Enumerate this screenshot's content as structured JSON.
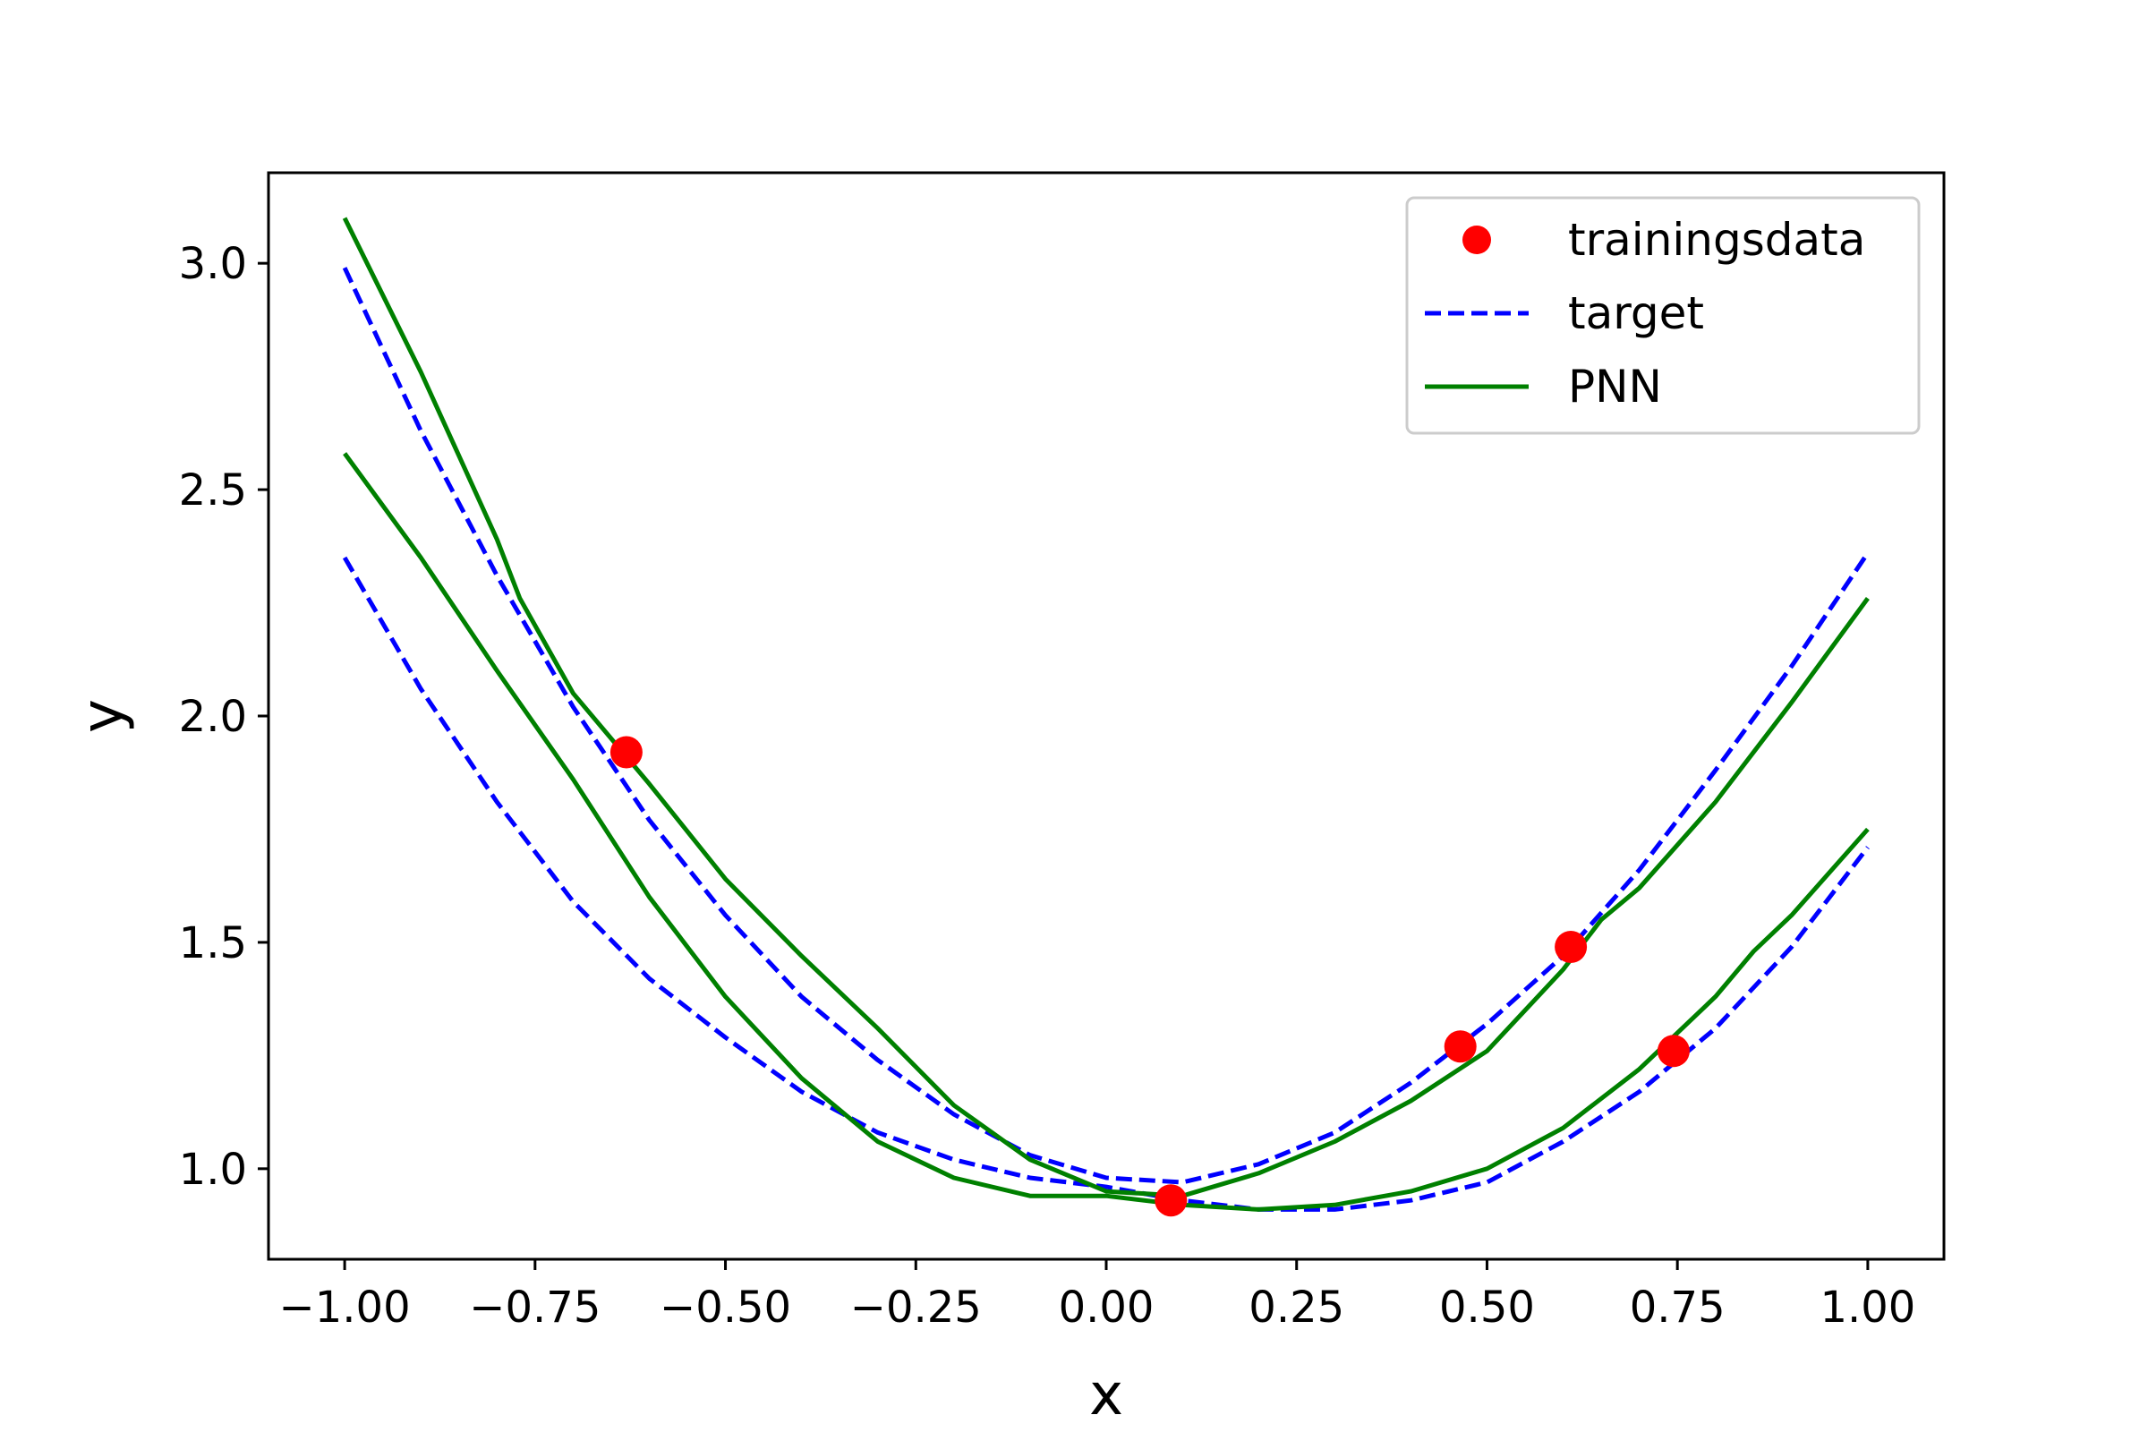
{
  "chart_data": {
    "type": "line",
    "xlabel": "x",
    "ylabel": "y",
    "xlim": [
      -1.1,
      1.1
    ],
    "ylim": [
      0.8,
      3.2
    ],
    "grid": false,
    "legend": {
      "placement": "top-right",
      "entries": [
        {
          "label": "trainingsdata",
          "marker": "circle",
          "color": "#ff0000"
        },
        {
          "label": "target",
          "style": "dashed",
          "color": "#0000ff"
        },
        {
          "label": "PNN",
          "style": "solid",
          "color": "#008000"
        }
      ]
    },
    "xticks": [
      -1.0,
      -0.75,
      -0.5,
      -0.25,
      0.0,
      0.25,
      0.5,
      0.75,
      1.0
    ],
    "xtick_labels": [
      "−1.00",
      "−0.75",
      "−0.50",
      "−0.25",
      "0.00",
      "0.25",
      "0.50",
      "0.75",
      "1.00"
    ],
    "yticks": [
      1.0,
      1.5,
      2.0,
      2.5,
      3.0
    ],
    "ytick_labels": [
      "1.0",
      "1.5",
      "2.0",
      "2.5",
      "3.0"
    ],
    "series": [
      {
        "legend_label": "target",
        "style": "dashed",
        "color": "#0000ff",
        "x": [
          -1.0,
          -0.9,
          -0.8,
          -0.7,
          -0.6,
          -0.5,
          -0.4,
          -0.3,
          -0.2,
          -0.1,
          0.0,
          0.1,
          0.2,
          0.3,
          0.4,
          0.5,
          0.6,
          0.7,
          0.8,
          0.9,
          1.0
        ],
        "y": [
          2.99,
          2.63,
          2.31,
          2.02,
          1.77,
          1.56,
          1.38,
          1.24,
          1.12,
          1.03,
          0.98,
          0.97,
          1.01,
          1.08,
          1.19,
          1.32,
          1.47,
          1.66,
          1.88,
          2.11,
          2.36
        ]
      },
      {
        "legend_label": "target",
        "style": "dashed",
        "color": "#0000ff",
        "x": [
          -1.0,
          -0.9,
          -0.8,
          -0.7,
          -0.6,
          -0.5,
          -0.4,
          -0.3,
          -0.2,
          -0.1,
          0.0,
          0.1,
          0.2,
          0.3,
          0.4,
          0.5,
          0.6,
          0.7,
          0.8,
          0.9,
          1.0
        ],
        "y": [
          2.35,
          2.06,
          1.81,
          1.59,
          1.42,
          1.29,
          1.17,
          1.08,
          1.02,
          0.98,
          0.96,
          0.93,
          0.91,
          0.91,
          0.93,
          0.97,
          1.06,
          1.17,
          1.31,
          1.49,
          1.71
        ]
      },
      {
        "legend_label": "PNN",
        "style": "solid",
        "color": "#008000",
        "x": [
          -1.0,
          -0.9,
          -0.8,
          -0.77,
          -0.7,
          -0.6,
          -0.5,
          -0.4,
          -0.3,
          -0.2,
          -0.1,
          0.0,
          0.1,
          0.2,
          0.3,
          0.4,
          0.5,
          0.6,
          0.65,
          0.7,
          0.8,
          0.9,
          1.0
        ],
        "y": [
          3.1,
          2.76,
          2.39,
          2.26,
          2.05,
          1.85,
          1.64,
          1.47,
          1.31,
          1.14,
          1.02,
          0.95,
          0.94,
          0.99,
          1.06,
          1.15,
          1.26,
          1.44,
          1.55,
          1.62,
          1.81,
          2.03,
          2.26
        ]
      },
      {
        "legend_label": "PNN",
        "style": "solid",
        "color": "#008000",
        "x": [
          -1.0,
          -0.9,
          -0.8,
          -0.7,
          -0.6,
          -0.5,
          -0.4,
          -0.3,
          -0.2,
          -0.1,
          0.0,
          0.1,
          0.2,
          0.3,
          0.4,
          0.5,
          0.6,
          0.7,
          0.8,
          0.85,
          0.9,
          1.0
        ],
        "y": [
          2.58,
          2.35,
          2.1,
          1.86,
          1.6,
          1.38,
          1.2,
          1.06,
          0.98,
          0.94,
          0.94,
          0.92,
          0.91,
          0.92,
          0.95,
          1.0,
          1.09,
          1.22,
          1.38,
          1.48,
          1.56,
          1.75
        ]
      }
    ],
    "points": {
      "legend_label": "trainingsdata",
      "color": "#ff0000",
      "x": [
        -0.63,
        0.085,
        0.465,
        0.61,
        0.745
      ],
      "y": [
        1.92,
        0.93,
        1.27,
        1.49,
        1.26
      ]
    }
  }
}
